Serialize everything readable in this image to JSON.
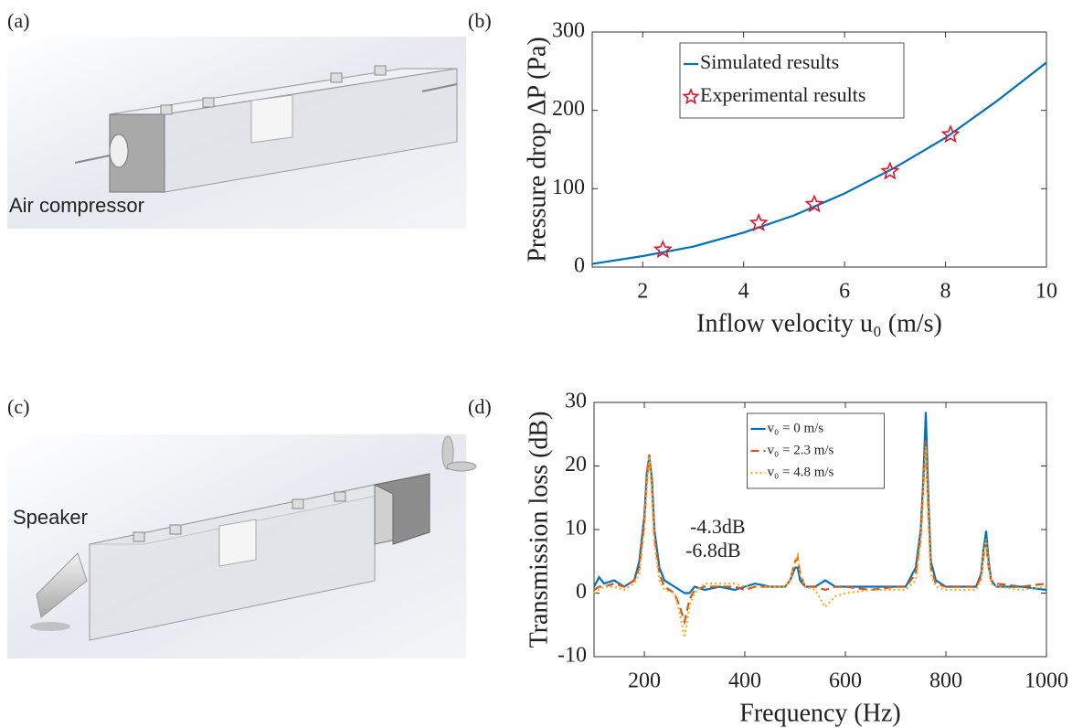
{
  "figures": [
    {
      "label": "(a)",
      "caption": "Air compressor"
    },
    {
      "label": "(c)",
      "caption": "Speaker"
    }
  ],
  "chart_data": [
    {
      "type": "line",
      "label": "(b)",
      "xlabel": "Inflow velocity u₀ (m/s)",
      "ylabel": "Pressure drop ΔP (Pa)",
      "xlim": [
        1,
        10
      ],
      "xticks": [
        2,
        4,
        6,
        8,
        10
      ],
      "ylim": [
        0,
        300
      ],
      "yticks": [
        0,
        100,
        200,
        300
      ],
      "legend": "upper-center",
      "series": [
        {
          "name": "Simulated results",
          "color": "#0072bd",
          "line_style": "solid",
          "x": [
            1,
            2,
            3,
            4,
            5,
            6,
            7,
            8,
            9,
            10
          ],
          "values": [
            4,
            14,
            26,
            44,
            66,
            94,
            127,
            165,
            211,
            261
          ]
        },
        {
          "name": "Experimental results",
          "color": "#e8112d",
          "marker": "star",
          "x": [
            2.4,
            4.3,
            5.4,
            6.9,
            8.1
          ],
          "values": [
            22,
            56,
            80,
            122,
            169
          ]
        }
      ]
    },
    {
      "type": "line",
      "label": "(d)",
      "xlabel": "Frequency (Hz)",
      "ylabel": "Transmission loss (dB)",
      "xlim": [
        100,
        1000
      ],
      "xticks": [
        200,
        400,
        600,
        800,
        1000
      ],
      "ylim": [
        -10,
        30
      ],
      "yticks": [
        -10,
        0,
        10,
        20,
        30
      ],
      "legend": "upper-center",
      "annotations": [
        "-4.3dB",
        "-6.8dB"
      ],
      "x": [
        100,
        110,
        120,
        140,
        160,
        180,
        190,
        200,
        205,
        210,
        215,
        220,
        230,
        240,
        260,
        270,
        280,
        290,
        300,
        320,
        350,
        380,
        400,
        420,
        450,
        480,
        490,
        500,
        505,
        510,
        520,
        540,
        560,
        580,
        600,
        650,
        700,
        720,
        740,
        750,
        755,
        760,
        765,
        770,
        780,
        800,
        830,
        860,
        870,
        875,
        880,
        885,
        890,
        900,
        950,
        1000
      ],
      "series": [
        {
          "name": "v₀ = 0 m/s",
          "color": "#0072bd",
          "line_style": "solid",
          "values": [
            1,
            2.5,
            1.5,
            2,
            1,
            2,
            5,
            12,
            19,
            21.5,
            18,
            10,
            4,
            2,
            1,
            0.5,
            0,
            0,
            1,
            0.5,
            1,
            0.5,
            1,
            1.5,
            1,
            1,
            2,
            4,
            4,
            2,
            1,
            1,
            2,
            1,
            1,
            1,
            1,
            1,
            4,
            10,
            18,
            28.5,
            15,
            5,
            2,
            1,
            1,
            1,
            3,
            7,
            9.8,
            5,
            2,
            1,
            1,
            0.5
          ]
        },
        {
          "name": "v₀ = 2.3 m/s",
          "color": "#d95319",
          "line_style": "dashed",
          "values": [
            0.5,
            1,
            1,
            1.5,
            1,
            2,
            4,
            11,
            18,
            21.8,
            17,
            9,
            3,
            1,
            0,
            -2,
            -4.5,
            -1,
            0.5,
            1,
            1,
            1,
            0.5,
            1,
            1,
            1,
            2,
            5,
            5.5,
            3,
            1,
            1,
            0.5,
            1,
            1,
            0.5,
            1,
            1,
            3,
            9,
            17,
            24,
            13,
            4,
            1.5,
            1,
            1,
            1,
            2.5,
            6,
            8,
            4,
            2,
            1.5,
            1,
            1.5
          ]
        },
        {
          "name": "v₀ = 4.8 m/s",
          "color": "#edb120",
          "line_style": "dotted",
          "values": [
            0,
            0.5,
            1,
            1,
            0.5,
            1.5,
            3,
            10,
            17,
            21.5,
            16,
            8,
            2,
            0.5,
            0,
            -3,
            -7,
            -2,
            0,
            1.5,
            1.5,
            1.5,
            1,
            1,
            1,
            1,
            2,
            5,
            6,
            3,
            1,
            0.5,
            -2.2,
            -0.5,
            0,
            0.5,
            0.5,
            0.5,
            2,
            8,
            16,
            23,
            12,
            3,
            1,
            0.5,
            0.5,
            0.5,
            2,
            6,
            8.5,
            4,
            1.5,
            1,
            0.5,
            1
          ]
        }
      ]
    }
  ]
}
